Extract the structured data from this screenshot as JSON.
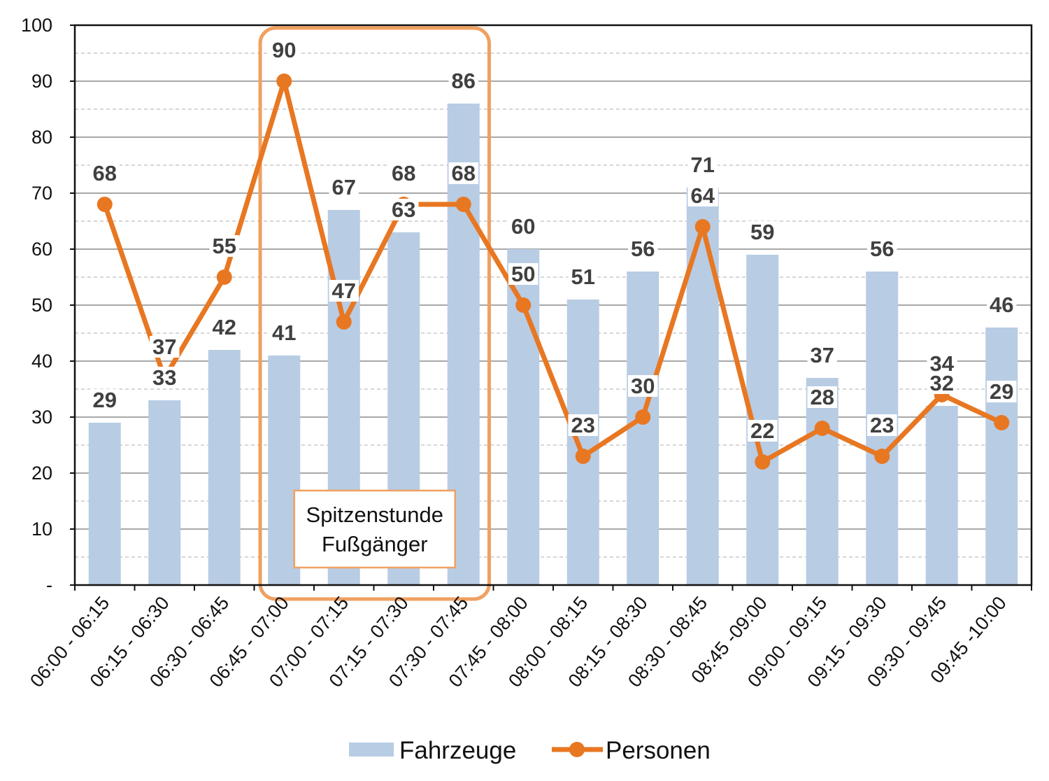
{
  "chart_data": {
    "type": "bar",
    "categories": [
      "06:00 - 06:15",
      "06:15 - 06:30",
      "06:30 - 06:45",
      "06:45 - 07:00",
      "07:00 - 07:15",
      "07:15 - 07:30",
      "07:30 - 07:45",
      "07:45 - 08:00",
      "08:00 - 08:15",
      "08:15 - 08:30",
      "08:30 - 08:45",
      "08:45 -09:00",
      "09:00 - 09:15",
      "09:15 - 09:30",
      "09:30 - 09:45",
      "09:45 -10:00"
    ],
    "series": [
      {
        "name": "Fahrzeuge",
        "type": "bar",
        "color": "#b8cce4",
        "values": [
          29,
          33,
          42,
          41,
          67,
          63,
          86,
          60,
          51,
          56,
          71,
          59,
          37,
          56,
          32,
          46
        ]
      },
      {
        "name": "Personen",
        "type": "line",
        "color": "#e87722",
        "values": [
          68,
          37,
          55,
          90,
          47,
          68,
          68,
          50,
          23,
          30,
          64,
          22,
          28,
          23,
          34,
          29
        ]
      }
    ],
    "ylim": [
      0,
      100
    ],
    "yticks": [
      0,
      10,
      20,
      30,
      40,
      50,
      60,
      70,
      80,
      90,
      100
    ],
    "ytick_labels": [
      "-",
      "10",
      "20",
      "30",
      "40",
      "50",
      "60",
      "70",
      "80",
      "90",
      "100"
    ],
    "grid": true,
    "legend_position": "bottom",
    "annotation": {
      "lines": [
        "Spitzenstunde",
        "Fußgänger"
      ],
      "highlight_categories": [
        "06:45 - 07:00",
        "07:00 - 07:15",
        "07:15 - 07:30",
        "07:30 - 07:45"
      ],
      "color": "#f0a060"
    }
  }
}
